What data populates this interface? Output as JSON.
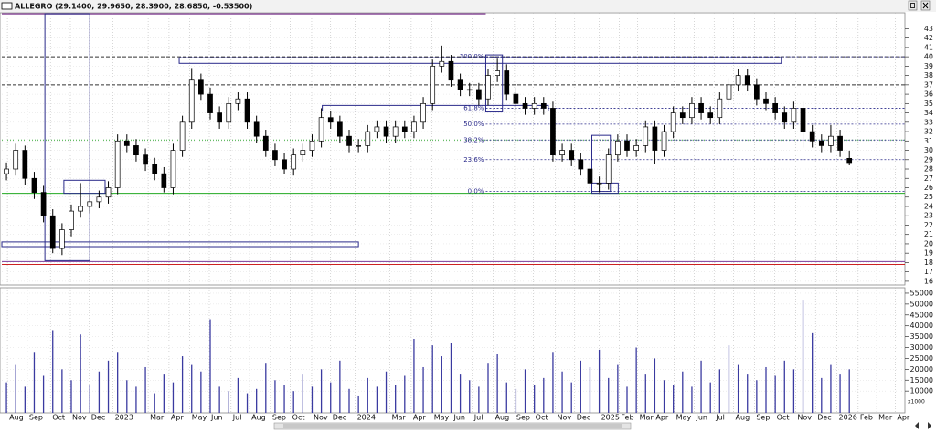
{
  "chart_data": [
    {
      "type": "candlestick",
      "title": "ALLEGRO (29.1400, 29.9650, 28.3900, 28.6850, -0.53500)",
      "x": [
        1,
        3,
        5,
        7,
        9,
        11,
        13,
        15,
        17,
        19,
        21,
        23,
        25,
        27,
        29,
        31,
        33,
        35,
        37,
        39,
        41,
        43,
        45,
        47,
        49,
        51,
        53,
        55,
        57,
        59,
        61,
        63,
        65,
        67,
        69,
        71,
        73,
        75,
        77,
        79,
        81,
        83,
        85,
        87,
        89,
        91,
        93,
        95,
        97,
        99,
        101,
        103,
        105,
        107,
        109,
        111,
        113,
        115,
        117,
        119,
        121,
        123,
        125,
        127,
        129,
        131,
        133,
        135,
        137,
        139,
        141,
        143,
        145,
        147,
        149,
        151,
        153,
        155,
        157,
        159,
        161,
        163,
        165,
        167,
        169,
        171,
        173,
        175,
        177,
        179,
        181,
        183
      ],
      "open": [
        27.5,
        28,
        30,
        27,
        25.5,
        23,
        19.5,
        21.5,
        23.5,
        24,
        24.5,
        25,
        26,
        31,
        30.5,
        29.5,
        28.5,
        27.5,
        26,
        30,
        33,
        37.5,
        36,
        34,
        33,
        35,
        35.5,
        33,
        31.5,
        30,
        29,
        28,
        29.5,
        30,
        31,
        33.5,
        33,
        31.5,
        30.5,
        30.5,
        32,
        32.5,
        31.5,
        32.5,
        32,
        33,
        35,
        39,
        39.5,
        37.5,
        36.5,
        36.5,
        35.5,
        38,
        38.5,
        36,
        35,
        34.5,
        35,
        34.5,
        29.5,
        30,
        29,
        28,
        26.5,
        26.5,
        29.5,
        31,
        30,
        30.5,
        32.5,
        30,
        32,
        34,
        33.5,
        35,
        34,
        33.5,
        35.5,
        37,
        38,
        37,
        35.5,
        35,
        34,
        33,
        34.5,
        32,
        31,
        30.5,
        31.5,
        29.14
      ],
      "high": [
        28.7,
        30.7,
        30.5,
        27.7,
        26.2,
        23.7,
        22.2,
        24.2,
        26.5,
        25.2,
        25.7,
        26.7,
        31.7,
        31.7,
        31.2,
        30.2,
        29.2,
        28.2,
        30.7,
        33.7,
        38.8,
        38.2,
        36.7,
        34.7,
        35.7,
        36.2,
        36.2,
        33.7,
        32.2,
        30.7,
        29.7,
        30.2,
        30.7,
        31.7,
        34.5,
        34.2,
        33.7,
        32.2,
        31.2,
        32.7,
        33.2,
        33.2,
        33.2,
        33.2,
        33.7,
        35.7,
        39.7,
        41.2,
        40.2,
        38.2,
        37.2,
        37.2,
        38.7,
        39.8,
        39.2,
        36.7,
        35.7,
        35.7,
        35.7,
        35.2,
        30.7,
        30.7,
        29.7,
        28.7,
        27.2,
        30.2,
        31.7,
        31.7,
        31.2,
        33.2,
        33.2,
        32.7,
        34.7,
        34.7,
        35.7,
        35.7,
        34.7,
        36.2,
        37.7,
        38.7,
        38.7,
        37.7,
        36.2,
        35.7,
        34.7,
        35.2,
        35.2,
        32.7,
        31.7,
        32.7,
        32.2,
        29.965
      ],
      "low": [
        26.8,
        27.3,
        26.3,
        24.8,
        22.3,
        19,
        18.8,
        20.8,
        22.8,
        23.3,
        23.8,
        24.3,
        25.3,
        29.8,
        28.8,
        27.8,
        26.8,
        25.5,
        25.3,
        29.3,
        32.3,
        35.3,
        33.3,
        32.3,
        32.3,
        34.3,
        32.3,
        30.8,
        29.3,
        28.3,
        27.5,
        27.3,
        28.8,
        29.3,
        30.3,
        32.3,
        30.8,
        29.8,
        29.8,
        29.8,
        31.3,
        30.8,
        30.8,
        31.3,
        31.3,
        32.3,
        34.3,
        38.3,
        36.8,
        35.8,
        35.8,
        34.8,
        34.8,
        37.3,
        35.3,
        34.3,
        33.8,
        33.8,
        33.8,
        28.8,
        28.8,
        28.3,
        27.3,
        25.8,
        25.5,
        25.8,
        28.8,
        29.3,
        29.3,
        29.8,
        28.5,
        29.3,
        31.3,
        32.8,
        32.8,
        33.3,
        32.8,
        32.8,
        34.8,
        36.3,
        36.3,
        34.8,
        34.3,
        33.3,
        32.3,
        32.3,
        30.3,
        30.3,
        29.8,
        29.8,
        29.3,
        28.39
      ],
      "close": [
        28,
        30,
        27,
        25.5,
        23,
        19.5,
        21.5,
        23.5,
        24,
        24.5,
        25,
        26,
        31,
        30.5,
        29.5,
        28.5,
        27.5,
        26,
        30,
        33,
        37.5,
        36,
        34,
        33,
        35,
        35.5,
        33,
        31.5,
        30,
        29,
        28,
        29.5,
        30,
        31,
        33.5,
        33,
        31.5,
        30.5,
        30.5,
        32,
        32.5,
        31.5,
        32.5,
        32,
        33,
        35,
        39,
        39.5,
        37.5,
        36.5,
        36.5,
        35.5,
        38,
        38.5,
        36,
        35,
        34.5,
        35,
        34.5,
        29.5,
        30,
        29,
        28,
        26.5,
        26.5,
        29.5,
        31,
        30,
        30.5,
        32.5,
        30,
        32,
        34,
        33.5,
        35,
        34,
        33.5,
        35.5,
        37,
        38,
        37,
        35.5,
        35,
        34,
        33,
        34.5,
        32,
        31,
        30.5,
        31.5,
        30,
        28.685
      ],
      "up_color": "#ffffff",
      "down_color": "#000000",
      "xlim": [
        0,
        195
      ],
      "ylim": [
        15.6,
        44.7
      ],
      "yticks": [
        16,
        17,
        18,
        19,
        20,
        21,
        22,
        23,
        24,
        25,
        26,
        27,
        28,
        29,
        30,
        31,
        32,
        33,
        34,
        35,
        36,
        37,
        38,
        39,
        40,
        41,
        42,
        43
      ],
      "grid": true,
      "hlines": [
        {
          "value": 25.4,
          "color": "#22aa22",
          "style": "solid"
        },
        {
          "value": 18.1,
          "color": "#7a3a9a",
          "style": "solid"
        },
        {
          "value": 17.8,
          "color": "#cc2222",
          "style": "solid"
        },
        {
          "value": 40.0,
          "color": "#333333",
          "style": "dashed"
        },
        {
          "value": 37.0,
          "color": "#333333",
          "style": "dashed"
        },
        {
          "value": 31.1,
          "color": "#33aa33",
          "style": "dotted"
        }
      ],
      "segments": [
        {
          "x": [
            0,
            104.5
          ],
          "y": [
            44.6,
            44.6
          ],
          "color": "#8a4a9a"
        }
      ],
      "box_color": "#2a2a8a",
      "boxes": [
        {
          "x": [
            9.3,
            19
          ],
          "y": [
            18.2,
            44.6
          ]
        },
        {
          "x": [
            0,
            77
          ],
          "y": [
            19.7,
            20.2
          ]
        },
        {
          "x": [
            13.4,
            22.3
          ],
          "y": [
            25.4,
            26.8
          ]
        },
        {
          "x": [
            38.3,
            168.3
          ],
          "y": [
            39.3,
            39.9
          ]
        },
        {
          "x": [
            69.2,
            118
          ],
          "y": [
            34.2,
            34.8
          ]
        },
        {
          "x": [
            104.5,
            108.1
          ],
          "y": [
            34.1,
            40.2
          ]
        },
        {
          "x": [
            127.4,
            131.4
          ],
          "y": [
            25.6,
            31.6
          ]
        },
        {
          "x": [
            127.4,
            133.1
          ],
          "y": [
            25.4,
            26.5
          ]
        }
      ],
      "fib": {
        "x_start": 104.5,
        "color": "#2a2a8a",
        "levels": [
          {
            "label": "100.0%",
            "value": 40.0
          },
          {
            "label": "61.8%",
            "value": 34.5
          },
          {
            "label": "50.0%",
            "value": 32.8
          },
          {
            "label": "38.2%",
            "value": 31.1
          },
          {
            "label": "23.6%",
            "value": 29.0
          },
          {
            "label": "0.0%",
            "value": 25.6
          }
        ]
      }
    },
    {
      "type": "bar",
      "x": [
        1,
        3,
        5,
        7,
        9,
        11,
        13,
        15,
        17,
        19,
        21,
        23,
        25,
        27,
        29,
        31,
        33,
        35,
        37,
        39,
        41,
        43,
        45,
        47,
        49,
        51,
        53,
        55,
        57,
        59,
        61,
        63,
        65,
        67,
        69,
        71,
        73,
        75,
        77,
        79,
        81,
        83,
        85,
        87,
        89,
        91,
        93,
        95,
        97,
        99,
        101,
        103,
        105,
        107,
        109,
        111,
        113,
        115,
        117,
        119,
        121,
        123,
        125,
        127,
        129,
        131,
        133,
        135,
        137,
        139,
        141,
        143,
        145,
        147,
        149,
        151,
        153,
        155,
        157,
        159,
        161,
        163,
        165,
        167,
        169,
        171,
        173,
        175,
        177,
        179,
        181,
        183
      ],
      "values": [
        14000,
        22000,
        12000,
        28000,
        17000,
        38000,
        20000,
        15000,
        36000,
        13000,
        19000,
        24000,
        28000,
        15000,
        12000,
        21000,
        9000,
        18000,
        14000,
        26000,
        22000,
        19000,
        43000,
        12000,
        10000,
        16000,
        9000,
        11000,
        23000,
        15000,
        13000,
        10000,
        18000,
        12000,
        20000,
        14000,
        24000,
        11000,
        8000,
        16000,
        12000,
        19000,
        13000,
        17000,
        34000,
        21000,
        31000,
        26000,
        32000,
        18000,
        15000,
        12000,
        23000,
        27000,
        14000,
        11000,
        20000,
        13000,
        16000,
        28000,
        19000,
        14000,
        24000,
        21000,
        29000,
        16000,
        22000,
        12000,
        30000,
        18000,
        25000,
        15000,
        13000,
        19000,
        12000,
        24000,
        14000,
        20000,
        31000,
        22000,
        18000,
        15000,
        21000,
        17000,
        24000,
        20000,
        52000,
        37000,
        16000,
        22000,
        18000,
        20000
      ],
      "color": "#3a3aa0",
      "unit_label": "x1000",
      "xlim": [
        0,
        195
      ],
      "ylim": [
        0,
        57500
      ],
      "yticks": [
        10000,
        15000,
        20000,
        25000,
        30000,
        35000,
        40000,
        45000,
        50000,
        55000
      ],
      "xticks": [
        {
          "value": 1.2,
          "label": "Aug"
        },
        {
          "value": 5.5,
          "label": "Sep"
        },
        {
          "value": 10.5,
          "label": "Oct"
        },
        {
          "value": 14.8,
          "label": "Nov"
        },
        {
          "value": 18.9,
          "label": "Dec"
        },
        {
          "value": 24,
          "label": "2023"
        },
        {
          "value": 31.6,
          "label": "Mar"
        },
        {
          "value": 36.1,
          "label": "Apr"
        },
        {
          "value": 40.6,
          "label": "May"
        },
        {
          "value": 44.8,
          "label": "Jun"
        },
        {
          "value": 49.5,
          "label": "Jul"
        },
        {
          "value": 53.5,
          "label": "Aug"
        },
        {
          "value": 58,
          "label": "Sep"
        },
        {
          "value": 62.3,
          "label": "Oct"
        },
        {
          "value": 66.9,
          "label": "Nov"
        },
        {
          "value": 71,
          "label": "Dec"
        },
        {
          "value": 76.3,
          "label": "2024"
        },
        {
          "value": 83.8,
          "label": "Mar"
        },
        {
          "value": 88.4,
          "label": "Apr"
        },
        {
          "value": 92.9,
          "label": "May"
        },
        {
          "value": 97.2,
          "label": "Jun"
        },
        {
          "value": 101.6,
          "label": "Jul"
        },
        {
          "value": 106.1,
          "label": "Aug"
        },
        {
          "value": 110.7,
          "label": "Sep"
        },
        {
          "value": 114.8,
          "label": "Oct"
        },
        {
          "value": 119.5,
          "label": "Nov"
        },
        {
          "value": 123.7,
          "label": "Dec"
        },
        {
          "value": 129,
          "label": "2025"
        },
        {
          "value": 133.3,
          "label": "Feb"
        },
        {
          "value": 137.3,
          "label": "Mar"
        },
        {
          "value": 140.8,
          "label": "Apr"
        },
        {
          "value": 145.2,
          "label": "May"
        },
        {
          "value": 149.5,
          "label": "Jun"
        },
        {
          "value": 153.8,
          "label": "Jul"
        },
        {
          "value": 158,
          "label": "Aug"
        },
        {
          "value": 162.5,
          "label": "Sep"
        },
        {
          "value": 166.9,
          "label": "Oct"
        },
        {
          "value": 171.4,
          "label": "Nov"
        },
        {
          "value": 175.7,
          "label": "Dec"
        },
        {
          "value": 180.3,
          "label": "2026"
        },
        {
          "value": 184.9,
          "label": "Feb"
        },
        {
          "value": 188.9,
          "label": "Mar"
        },
        {
          "value": 192.9,
          "label": "Apr"
        }
      ]
    }
  ]
}
